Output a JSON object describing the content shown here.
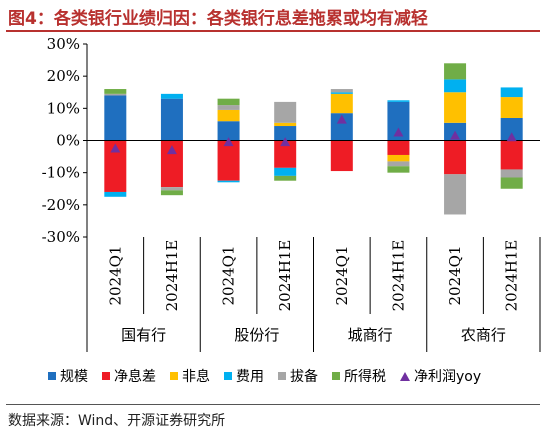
{
  "header": {
    "title": "图4：各类银行业绩归因：各类银行息差拖累或均有减轻"
  },
  "source": "数据来源：Wind、开源证券研究所",
  "chart_data": {
    "type": "bar",
    "stacked": true,
    "categories": [
      "2024Q1",
      "2024H1E",
      "2024Q1",
      "2024H1E",
      "2024Q1",
      "2024H1E",
      "2024Q1",
      "2024H1E"
    ],
    "groups": [
      {
        "label": "国有行",
        "categories": [
          "2024Q1",
          "2024H1E"
        ]
      },
      {
        "label": "股份行",
        "categories": [
          "2024Q1",
          "2024H1E"
        ]
      },
      {
        "label": "城商行",
        "categories": [
          "2024Q1",
          "2024H1E"
        ]
      },
      {
        "label": "农商行",
        "categories": [
          "2024Q1",
          "2024H1E"
        ]
      }
    ],
    "series": [
      {
        "name": "规模",
        "color": "#1f6fbf",
        "values": [
          14,
          13,
          6,
          4.5,
          8.5,
          12,
          5.5,
          7
        ]
      },
      {
        "name": "净息差",
        "color": "#ee1c25",
        "values": [
          -16,
          -14.5,
          -12.5,
          -8.5,
          -9.5,
          -4.5,
          -10.5,
          -9
        ]
      },
      {
        "name": "非息",
        "color": "#ffc000",
        "values": [
          0,
          0,
          3.5,
          1,
          6,
          -2,
          9.5,
          6.5
        ]
      },
      {
        "name": "费用",
        "color": "#00b0f0",
        "values": [
          -1.5,
          1.5,
          -0.5,
          -2.5,
          0.5,
          0.5,
          4,
          3
        ]
      },
      {
        "name": "拔备",
        "color": "#a6a6a6",
        "values": [
          0.5,
          -1,
          1.5,
          6.5,
          1,
          -1.5,
          -12.5,
          -2.5
        ]
      },
      {
        "name": "所得税",
        "color": "#70ad47",
        "values": [
          1.5,
          -1.5,
          2,
          -1.5,
          0,
          -2,
          5,
          -3.5
        ]
      }
    ],
    "line_series": {
      "name": "净利润yoy",
      "color": "#7030a0",
      "values": [
        -2.5,
        -3,
        -0.5,
        -0.5,
        6.5,
        2.5,
        1.5,
        1
      ]
    },
    "y_ticks": [
      "30%",
      "20%",
      "10%",
      "0%",
      "-10%",
      "-20%",
      "-30%"
    ],
    "ylim": [
      -30,
      30
    ],
    "xlabel": "",
    "ylabel": "",
    "grid": false,
    "legend_position": "bottom"
  }
}
